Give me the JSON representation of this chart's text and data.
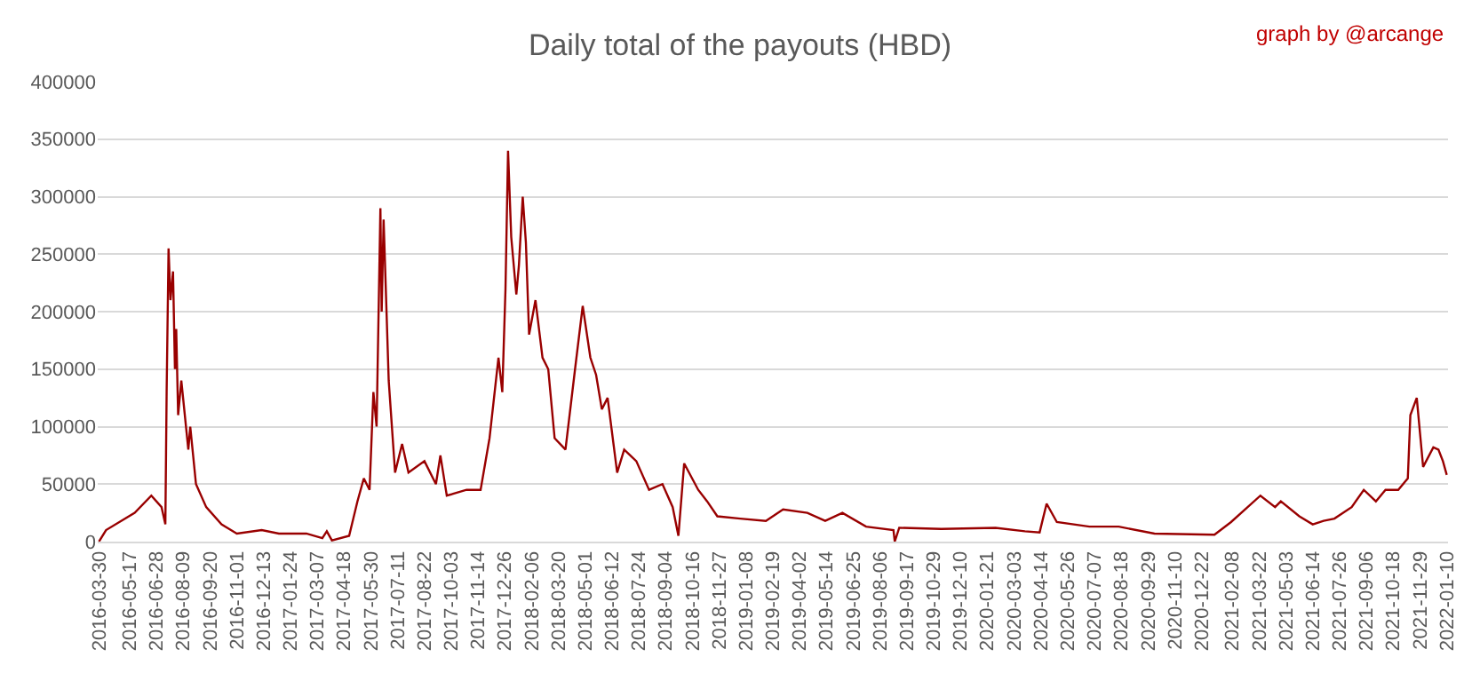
{
  "chart_data": {
    "type": "line",
    "title": "Daily total of the payouts (HBD)",
    "annotations": [
      "graph by @arcange"
    ],
    "grid": "y",
    "marker": "none",
    "line_style": "solid",
    "xlim": [
      "2016-03-28",
      "2022-01-12"
    ],
    "ylim": [
      0,
      400000
    ],
    "yticks": [
      0,
      50000,
      100000,
      150000,
      200000,
      250000,
      300000,
      350000,
      400000
    ],
    "xticks": [
      "2016-03-30",
      "2016-05-17",
      "2016-06-28",
      "2016-08-09",
      "2016-09-20",
      "2016-11-01",
      "2016-12-13",
      "2017-01-24",
      "2017-03-07",
      "2017-04-18",
      "2017-05-30",
      "2017-07-11",
      "2017-08-22",
      "2017-10-03",
      "2017-11-14",
      "2017-12-26",
      "2018-02-06",
      "2018-03-20",
      "2018-05-01",
      "2018-06-12",
      "2018-07-24",
      "2018-09-04",
      "2018-10-16",
      "2018-11-27",
      "2019-01-08",
      "2019-02-19",
      "2019-04-02",
      "2019-05-14",
      "2019-06-25",
      "2019-08-06",
      "2019-09-17",
      "2019-10-29",
      "2019-12-10",
      "2020-01-21",
      "2020-03-03",
      "2020-04-14",
      "2020-05-26",
      "2020-07-07",
      "2020-08-18",
      "2020-09-29",
      "2020-11-10",
      "2020-12-22",
      "2021-02-08",
      "2021-03-22",
      "2021-05-03",
      "2021-06-14",
      "2021-07-26",
      "2021-09-06",
      "2021-10-18",
      "2021-11-29",
      "2022-01-10"
    ],
    "series": [
      {
        "color": "#990000",
        "x": [
          "2016-03-30",
          "2016-04-10",
          "2016-05-25",
          "2016-06-20",
          "2016-07-06",
          "2016-07-12",
          "2016-07-14",
          "2016-07-17",
          "2016-07-20",
          "2016-07-24",
          "2016-07-27",
          "2016-07-29",
          "2016-08-01",
          "2016-08-06",
          "2016-08-17",
          "2016-08-20",
          "2016-08-29",
          "2016-09-14",
          "2016-10-08",
          "2016-11-01",
          "2016-12-10",
          "2017-01-06",
          "2017-02-18",
          "2017-03-15",
          "2017-03-22",
          "2017-03-30",
          "2017-04-26",
          "2017-05-09",
          "2017-05-19",
          "2017-05-28",
          "2017-06-03",
          "2017-06-08",
          "2017-06-14",
          "2017-06-16",
          "2017-06-19",
          "2017-06-27",
          "2017-07-07",
          "2017-07-18",
          "2017-07-28",
          "2017-08-22",
          "2017-09-09",
          "2017-09-16",
          "2017-09-26",
          "2017-10-27",
          "2017-11-18",
          "2017-12-02",
          "2017-12-16",
          "2017-12-22",
          "2017-12-27",
          "2017-12-31",
          "2018-01-05",
          "2018-01-13",
          "2018-01-17",
          "2018-01-23",
          "2018-01-28",
          "2018-02-02",
          "2018-02-12",
          "2018-02-23",
          "2018-03-04",
          "2018-03-14",
          "2018-03-31",
          "2018-04-15",
          "2018-04-27",
          "2018-05-09",
          "2018-05-18",
          "2018-05-27",
          "2018-06-05",
          "2018-06-20",
          "2018-07-01",
          "2018-07-20",
          "2018-08-09",
          "2018-08-30",
          "2018-09-15",
          "2018-09-24",
          "2018-10-03",
          "2018-10-25",
          "2018-11-08",
          "2018-11-24",
          "2018-12-30",
          "2019-02-08",
          "2019-03-07",
          "2019-04-14",
          "2019-05-12",
          "2019-06-08",
          "2019-07-15",
          "2019-08-27",
          "2019-08-29",
          "2019-09-05",
          "2019-11-10",
          "2020-02-03",
          "2020-03-20",
          "2020-04-12",
          "2020-04-23",
          "2020-05-09",
          "2020-06-29",
          "2020-08-14",
          "2020-10-09",
          "2021-01-11",
          "2021-02-06",
          "2021-03-24",
          "2021-04-16",
          "2021-04-25",
          "2021-05-24",
          "2021-06-14",
          "2021-07-01",
          "2021-07-18",
          "2021-08-14",
          "2021-09-02",
          "2021-09-21",
          "2021-10-06",
          "2021-10-26",
          "2021-11-10",
          "2021-11-14",
          "2021-11-24",
          "2021-12-04",
          "2021-12-20",
          "2021-12-28",
          "2022-01-04",
          "2022-01-10"
        ],
        "values": [
          0,
          10000,
          25000,
          40000,
          30000,
          15000,
          130000,
          255000,
          210000,
          235000,
          150000,
          185000,
          110000,
          140000,
          80000,
          100000,
          50000,
          30000,
          15000,
          7000,
          10000,
          7000,
          7000,
          3000,
          9000,
          1000,
          5000,
          35000,
          55000,
          45000,
          130000,
          100000,
          290000,
          200000,
          280000,
          140000,
          60000,
          85000,
          60000,
          70000,
          50000,
          75000,
          40000,
          45000,
          45000,
          90000,
          160000,
          130000,
          220000,
          340000,
          265000,
          215000,
          240000,
          300000,
          260000,
          180000,
          210000,
          160000,
          150000,
          90000,
          80000,
          150000,
          205000,
          160000,
          145000,
          115000,
          125000,
          60000,
          80000,
          70000,
          45000,
          50000,
          30000,
          5000,
          68000,
          45000,
          35000,
          22000,
          20000,
          18000,
          28000,
          25000,
          18000,
          25000,
          13000,
          10000,
          0,
          12000,
          11000,
          12000,
          9000,
          8000,
          33000,
          17000,
          13000,
          13000,
          7000,
          6000,
          17000,
          40000,
          30000,
          35000,
          22000,
          15000,
          18000,
          20000,
          30000,
          45000,
          35000,
          45000,
          45000,
          55000,
          110000,
          125000,
          65000,
          82000,
          80000,
          70000,
          58000
        ]
      }
    ]
  }
}
